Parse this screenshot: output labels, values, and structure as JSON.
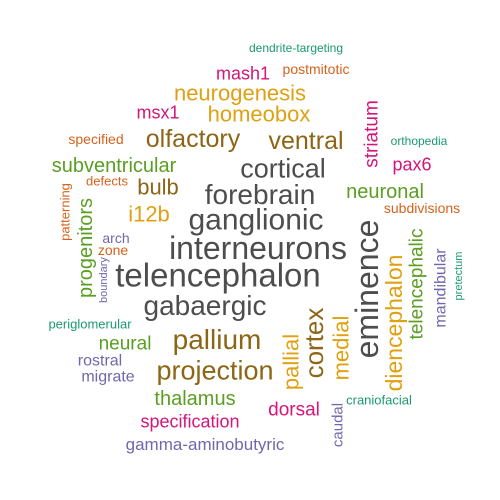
{
  "palette": {
    "dark_gray": "#4d4d4d",
    "brown": "#8c6515",
    "gold": "#e0a010",
    "green": "#5a9e22",
    "magenta": "#d4157a",
    "orange": "#d5621c",
    "teal": "#1b9a6f",
    "purple": "#6f68ac"
  },
  "words": [
    {
      "id": "interneurons",
      "text": "interneurons",
      "color": "#4d4d4d"
    },
    {
      "id": "telencephalon",
      "text": "telencephalon",
      "color": "#4d4d4d"
    },
    {
      "id": "ganglionic",
      "text": "ganglionic",
      "color": "#4d4d4d"
    },
    {
      "id": "gabaergic",
      "text": "gabaergic",
      "color": "#4d4d4d"
    },
    {
      "id": "forebrain",
      "text": "forebrain",
      "color": "#4d4d4d"
    },
    {
      "id": "cortical",
      "text": "cortical",
      "color": "#4d4d4d"
    },
    {
      "id": "eminence",
      "text": "eminence",
      "color": "#4d4d4d"
    },
    {
      "id": "cortex",
      "text": "cortex",
      "color": "#8c6515"
    },
    {
      "id": "projection",
      "text": "projection",
      "color": "#8c6515"
    },
    {
      "id": "pallium",
      "text": "pallium",
      "color": "#8c6515"
    },
    {
      "id": "olfactory",
      "text": "olfactory",
      "color": "#8c6515"
    },
    {
      "id": "ventral",
      "text": "ventral",
      "color": "#8c6515"
    },
    {
      "id": "bulb",
      "text": "bulb",
      "color": "#8c6515"
    },
    {
      "id": "diencephalon",
      "text": "diencephalon",
      "color": "#e0a010"
    },
    {
      "id": "medial",
      "text": "medial",
      "color": "#e0a010"
    },
    {
      "id": "pallial",
      "text": "pallial",
      "color": "#e0a010"
    },
    {
      "id": "homeobox",
      "text": "homeobox",
      "color": "#e0a010"
    },
    {
      "id": "neurogenesis",
      "text": "neurogenesis",
      "color": "#e0a010"
    },
    {
      "id": "i12b",
      "text": "i12b",
      "color": "#e0a010"
    },
    {
      "id": "thalamus",
      "text": "thalamus",
      "color": "#5a9e22"
    },
    {
      "id": "subventricular",
      "text": "subventricular",
      "color": "#5a9e22"
    },
    {
      "id": "neuronal",
      "text": "neuronal",
      "color": "#5a9e22"
    },
    {
      "id": "progenitors",
      "text": "progenitors",
      "color": "#5a9e22"
    },
    {
      "id": "telencephalic",
      "text": "telencephalic",
      "color": "#5a9e22"
    },
    {
      "id": "neural",
      "text": "neural",
      "color": "#5a9e22"
    },
    {
      "id": "striatum",
      "text": "striatum",
      "color": "#d4157a"
    },
    {
      "id": "specification",
      "text": "specification",
      "color": "#d4157a"
    },
    {
      "id": "dorsal",
      "text": "dorsal",
      "color": "#d4157a"
    },
    {
      "id": "msx1",
      "text": "msx1",
      "color": "#d4157a"
    },
    {
      "id": "mash1",
      "text": "mash1",
      "color": "#d4157a"
    },
    {
      "id": "pax6",
      "text": "pax6",
      "color": "#d4157a"
    },
    {
      "id": "postmitotic",
      "text": "postmitotic",
      "color": "#d5621c"
    },
    {
      "id": "specified",
      "text": "specified",
      "color": "#d5621c"
    },
    {
      "id": "defects",
      "text": "defects",
      "color": "#d5621c"
    },
    {
      "id": "patterning",
      "text": "patterning",
      "color": "#d5621c"
    },
    {
      "id": "zone",
      "text": "zone",
      "color": "#d5621c"
    },
    {
      "id": "subdivisions",
      "text": "subdivisions",
      "color": "#d5621c"
    },
    {
      "id": "dendrite-targeting",
      "text": "dendrite-targeting",
      "color": "#1b9a6f"
    },
    {
      "id": "orthopedia",
      "text": "orthopedia",
      "color": "#1b9a6f"
    },
    {
      "id": "periglomerular",
      "text": "periglomerular",
      "color": "#1b9a6f"
    },
    {
      "id": "craniofacial",
      "text": "craniofacial",
      "color": "#1b9a6f"
    },
    {
      "id": "pretectum",
      "text": "pretectum",
      "color": "#1b9a6f"
    },
    {
      "id": "gamma-aminobutyric",
      "text": "gamma-aminobutyric",
      "color": "#6f68ac"
    },
    {
      "id": "rostral",
      "text": "rostral",
      "color": "#6f68ac"
    },
    {
      "id": "migrate",
      "text": "migrate",
      "color": "#6f68ac"
    },
    {
      "id": "arch",
      "text": "arch",
      "color": "#6f68ac"
    },
    {
      "id": "boundary",
      "text": "boundary",
      "color": "#6f68ac"
    },
    {
      "id": "caudal",
      "text": "caudal",
      "color": "#6f68ac"
    },
    {
      "id": "mandibular",
      "text": "mandibular",
      "color": "#6f68ac"
    }
  ]
}
